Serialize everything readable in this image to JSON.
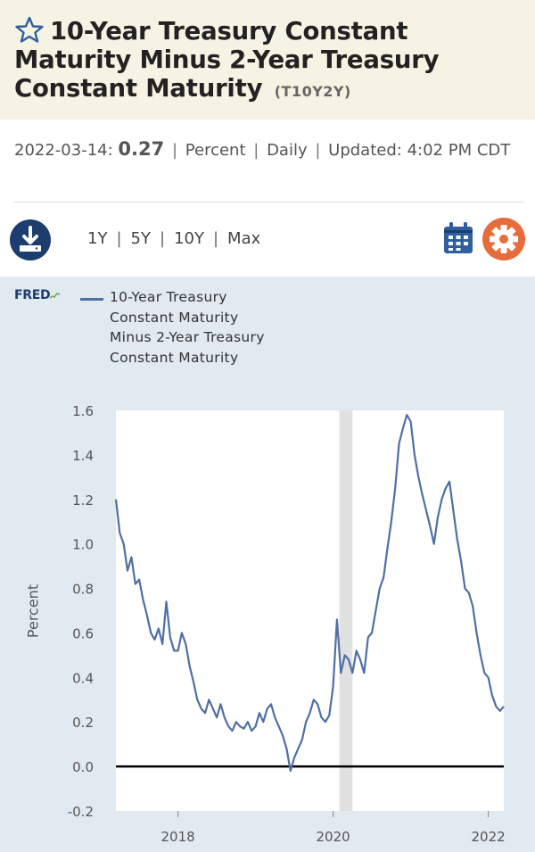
{
  "header": {
    "title": "10-Year Treasury Constant Maturity Minus 2-Year Treasury Constant Maturity",
    "series_id": "(T10Y2Y)"
  },
  "observation": {
    "date": "2022-03-14:",
    "value": "0.27",
    "units": "Percent",
    "frequency": "Daily",
    "updated_label": "Updated:",
    "updated_time": "4:02 PM CDT"
  },
  "toolbar": {
    "ranges": [
      "1Y",
      "5Y",
      "10Y",
      "Max"
    ],
    "download_icon": "download-icon",
    "calendar_icon": "calendar-icon",
    "settings_icon": "gear-icon"
  },
  "colors": {
    "series": "#4f6fa5",
    "accent_orange": "#e76c3c",
    "dark_blue": "#1c3d6e",
    "panel_bg": "#e1e9f1",
    "recession": "#e1e1e1"
  },
  "chart_data": {
    "type": "line",
    "brand": "FRED",
    "legend": "10-Year Treasury Constant Maturity Minus 2-Year Treasury Constant Maturity",
    "ylabel": "Percent",
    "xlabel": "",
    "ylim": [
      -0.2,
      1.6
    ],
    "xlim": [
      2017.2,
      2022.2
    ],
    "yticks": [
      "1.6",
      "1.4",
      "1.2",
      "1.0",
      "0.8",
      "0.6",
      "0.4",
      "0.2",
      "0.0",
      "-0.2"
    ],
    "ytick_values": [
      1.6,
      1.4,
      1.2,
      1.0,
      0.8,
      0.6,
      0.4,
      0.2,
      0.0,
      -0.2
    ],
    "xticks": [
      "2018",
      "2020",
      "2022"
    ],
    "xtick_values": [
      2018,
      2020,
      2022
    ],
    "recession": [
      2020.08,
      2020.25
    ],
    "zero_line": 0.0,
    "series": [
      {
        "name": "10-Year Treasury Constant Maturity Minus 2-Year Treasury Constant Maturity",
        "x": [
          2017.2,
          2017.25,
          2017.3,
          2017.35,
          2017.4,
          2017.45,
          2017.5,
          2017.55,
          2017.6,
          2017.65,
          2017.7,
          2017.75,
          2017.8,
          2017.85,
          2017.9,
          2017.95,
          2018.0,
          2018.05,
          2018.1,
          2018.15,
          2018.2,
          2018.25,
          2018.3,
          2018.35,
          2018.4,
          2018.45,
          2018.5,
          2018.55,
          2018.6,
          2018.65,
          2018.7,
          2018.75,
          2018.8,
          2018.85,
          2018.9,
          2018.95,
          2019.0,
          2019.05,
          2019.1,
          2019.15,
          2019.2,
          2019.25,
          2019.3,
          2019.35,
          2019.4,
          2019.45,
          2019.5,
          2019.55,
          2019.6,
          2019.65,
          2019.7,
          2019.75,
          2019.8,
          2019.85,
          2019.9,
          2019.95,
          2020.0,
          2020.05,
          2020.1,
          2020.15,
          2020.2,
          2020.25,
          2020.3,
          2020.35,
          2020.4,
          2020.45,
          2020.5,
          2020.55,
          2020.6,
          2020.65,
          2020.7,
          2020.75,
          2020.8,
          2020.85,
          2020.9,
          2020.95,
          2021.0,
          2021.05,
          2021.1,
          2021.15,
          2021.2,
          2021.25,
          2021.3,
          2021.35,
          2021.4,
          2021.45,
          2021.5,
          2021.55,
          2021.6,
          2021.65,
          2021.7,
          2021.75,
          2021.8,
          2021.85,
          2021.9,
          2021.95,
          2022.0,
          2022.05,
          2022.1,
          2022.15,
          2022.2
        ],
        "y": [
          1.2,
          1.05,
          1.0,
          0.88,
          0.94,
          0.82,
          0.84,
          0.75,
          0.68,
          0.6,
          0.57,
          0.62,
          0.55,
          0.74,
          0.58,
          0.52,
          0.52,
          0.6,
          0.55,
          0.45,
          0.38,
          0.3,
          0.26,
          0.24,
          0.3,
          0.26,
          0.22,
          0.28,
          0.22,
          0.18,
          0.16,
          0.2,
          0.18,
          0.17,
          0.2,
          0.16,
          0.18,
          0.24,
          0.2,
          0.26,
          0.28,
          0.22,
          0.18,
          0.14,
          0.08,
          -0.02,
          0.04,
          0.08,
          0.12,
          0.2,
          0.24,
          0.3,
          0.28,
          0.22,
          0.2,
          0.23,
          0.36,
          0.66,
          0.42,
          0.5,
          0.48,
          0.42,
          0.52,
          0.48,
          0.42,
          0.58,
          0.6,
          0.7,
          0.8,
          0.85,
          0.98,
          1.1,
          1.25,
          1.45,
          1.52,
          1.58,
          1.55,
          1.4,
          1.3,
          1.22,
          1.15,
          1.08,
          1.0,
          1.12,
          1.2,
          1.25,
          1.28,
          1.15,
          1.02,
          0.92,
          0.8,
          0.78,
          0.72,
          0.6,
          0.5,
          0.42,
          0.4,
          0.32,
          0.27,
          0.25,
          0.27
        ]
      }
    ]
  }
}
